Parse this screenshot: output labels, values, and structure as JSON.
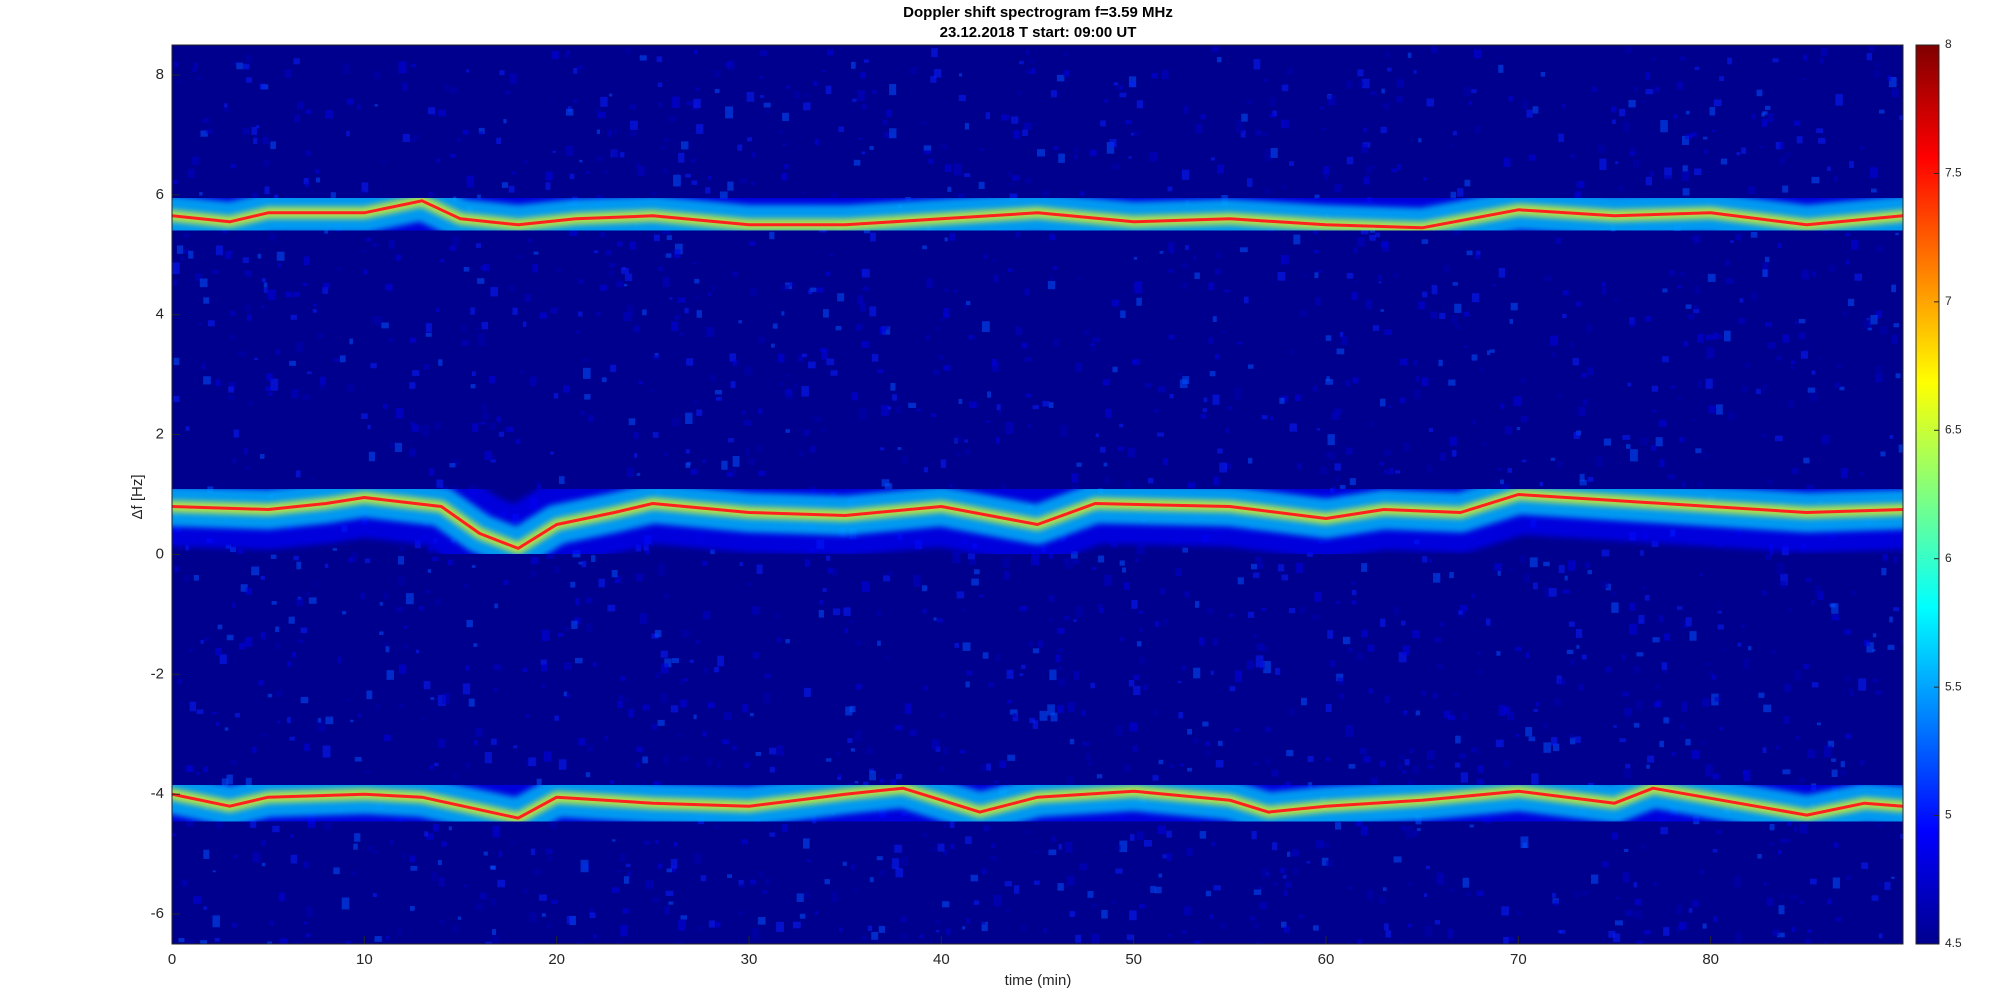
{
  "chart_data": {
    "type": "spectrogram",
    "title": "Doppler shift spectrogram f=3.59 MHz",
    "subtitle": "23.12.2018   T start: 09:00 UT",
    "x_label": "time (min)",
    "y_label": "Δf [Hz]",
    "xlim": [
      0,
      90
    ],
    "xticks": [
      0,
      10,
      20,
      30,
      40,
      50,
      60,
      70,
      80
    ],
    "ylim": [
      -6.5,
      8.5
    ],
    "yticks": [
      -6,
      -4,
      -2,
      0,
      2,
      4,
      6,
      8
    ],
    "colormap": "jet",
    "clim": [
      4.5,
      8
    ],
    "cticks": [
      4.5,
      5,
      5.5,
      6,
      6.5,
      7,
      7.5,
      8
    ],
    "series": [
      {
        "color": "#ff2020",
        "x": [
          0,
          3,
          5,
          10,
          13,
          15,
          18,
          21,
          25,
          30,
          35,
          40,
          45,
          50,
          55,
          60,
          65,
          70,
          75,
          80,
          85,
          90
        ],
        "values": [
          5.65,
          5.55,
          5.7,
          5.7,
          5.9,
          5.6,
          5.5,
          5.6,
          5.65,
          5.5,
          5.5,
          5.6,
          5.7,
          5.55,
          5.6,
          5.5,
          5.45,
          5.75,
          5.65,
          5.7,
          5.5,
          5.65
        ]
      },
      {
        "color": "#ff2020",
        "x": [
          0,
          5,
          8,
          10,
          14,
          16,
          18,
          20,
          23,
          25,
          30,
          35,
          40,
          45,
          48,
          55,
          60,
          63,
          67,
          70,
          75,
          80,
          85,
          90
        ],
        "values": [
          0.8,
          0.75,
          0.85,
          0.95,
          0.8,
          0.35,
          0.1,
          0.5,
          0.7,
          0.85,
          0.7,
          0.65,
          0.8,
          0.5,
          0.85,
          0.8,
          0.6,
          0.75,
          0.7,
          1.0,
          0.9,
          0.8,
          0.7,
          0.75
        ]
      },
      {
        "color": "#ff2020",
        "x": [
          0,
          3,
          5,
          10,
          13,
          18,
          20,
          25,
          30,
          35,
          38,
          42,
          45,
          50,
          55,
          57,
          60,
          65,
          70,
          75,
          77,
          85,
          88,
          90
        ],
        "values": [
          -4.0,
          -4.2,
          -4.05,
          -4.0,
          -4.05,
          -4.4,
          -4.05,
          -4.15,
          -4.2,
          -4.0,
          -3.9,
          -4.3,
          -4.05,
          -3.95,
          -4.1,
          -4.3,
          -4.2,
          -4.1,
          -3.95,
          -4.15,
          -3.9,
          -4.35,
          -4.15,
          -4.2
        ]
      }
    ]
  }
}
